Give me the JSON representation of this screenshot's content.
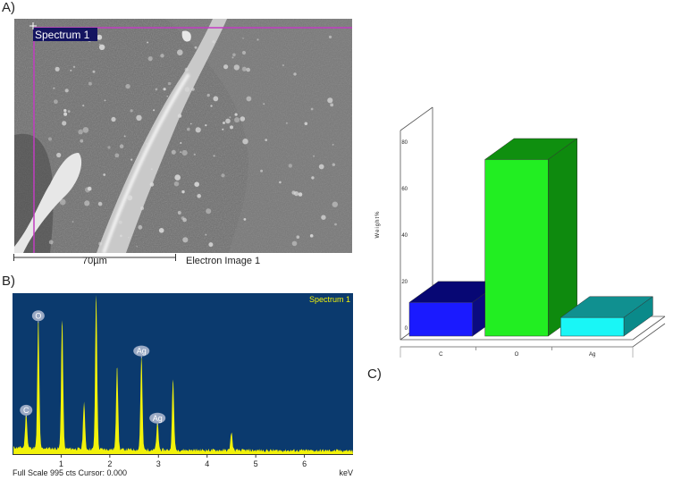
{
  "panels": {
    "a_label": "A)",
    "b_label": "B)",
    "c_label": "C)"
  },
  "sem": {
    "spectrum_label": "Spectrum 1",
    "scale_label": "70µm",
    "image_label": "Electron Image 1"
  },
  "edx": {
    "spectrum_title": "Spectrum 1",
    "footer": "Full Scale 995 cts Cursor: 0.000",
    "unit": "keV",
    "x_ticks": [
      "1",
      "2",
      "3",
      "4",
      "5",
      "6"
    ],
    "peak_labels": [
      "O",
      "C",
      "Ag",
      "Ag"
    ]
  },
  "colors": {
    "edx_background": "#0b3a6e",
    "edx_spectrum": "#f2f20a",
    "sem_marker": "#c23cc2",
    "bar_c": "#1a1aff",
    "bar_o": "#22ee22",
    "bar_ag": "#19f6f6"
  },
  "chart_data": [
    {
      "type": "line",
      "title": "Spectrum 1",
      "xlabel": "keV",
      "x_ticks": [
        1,
        2,
        3,
        4,
        5,
        6
      ],
      "xlim": [
        0,
        7
      ],
      "ylim": [
        0,
        995
      ],
      "peaks": [
        {
          "x": 0.28,
          "y": 230,
          "label": "C"
        },
        {
          "x": 0.53,
          "y": 820,
          "label": "O"
        },
        {
          "x": 1.02,
          "y": 820,
          "label": ""
        },
        {
          "x": 1.47,
          "y": 300,
          "label": ""
        },
        {
          "x": 1.72,
          "y": 995,
          "label": ""
        },
        {
          "x": 2.15,
          "y": 540,
          "label": ""
        },
        {
          "x": 2.65,
          "y": 600,
          "label": "Ag"
        },
        {
          "x": 2.98,
          "y": 180,
          "label": "Ag"
        },
        {
          "x": 3.3,
          "y": 450,
          "label": ""
        },
        {
          "x": 4.5,
          "y": 115,
          "label": ""
        }
      ]
    },
    {
      "type": "bar",
      "categories": [
        "C",
        "O",
        "Ag"
      ],
      "values": [
        14.5,
        76,
        8
      ],
      "ylabel": "Weight%",
      "ylim": [
        0,
        80
      ],
      "y_ticks": [
        0,
        20,
        40,
        60,
        80
      ]
    }
  ]
}
